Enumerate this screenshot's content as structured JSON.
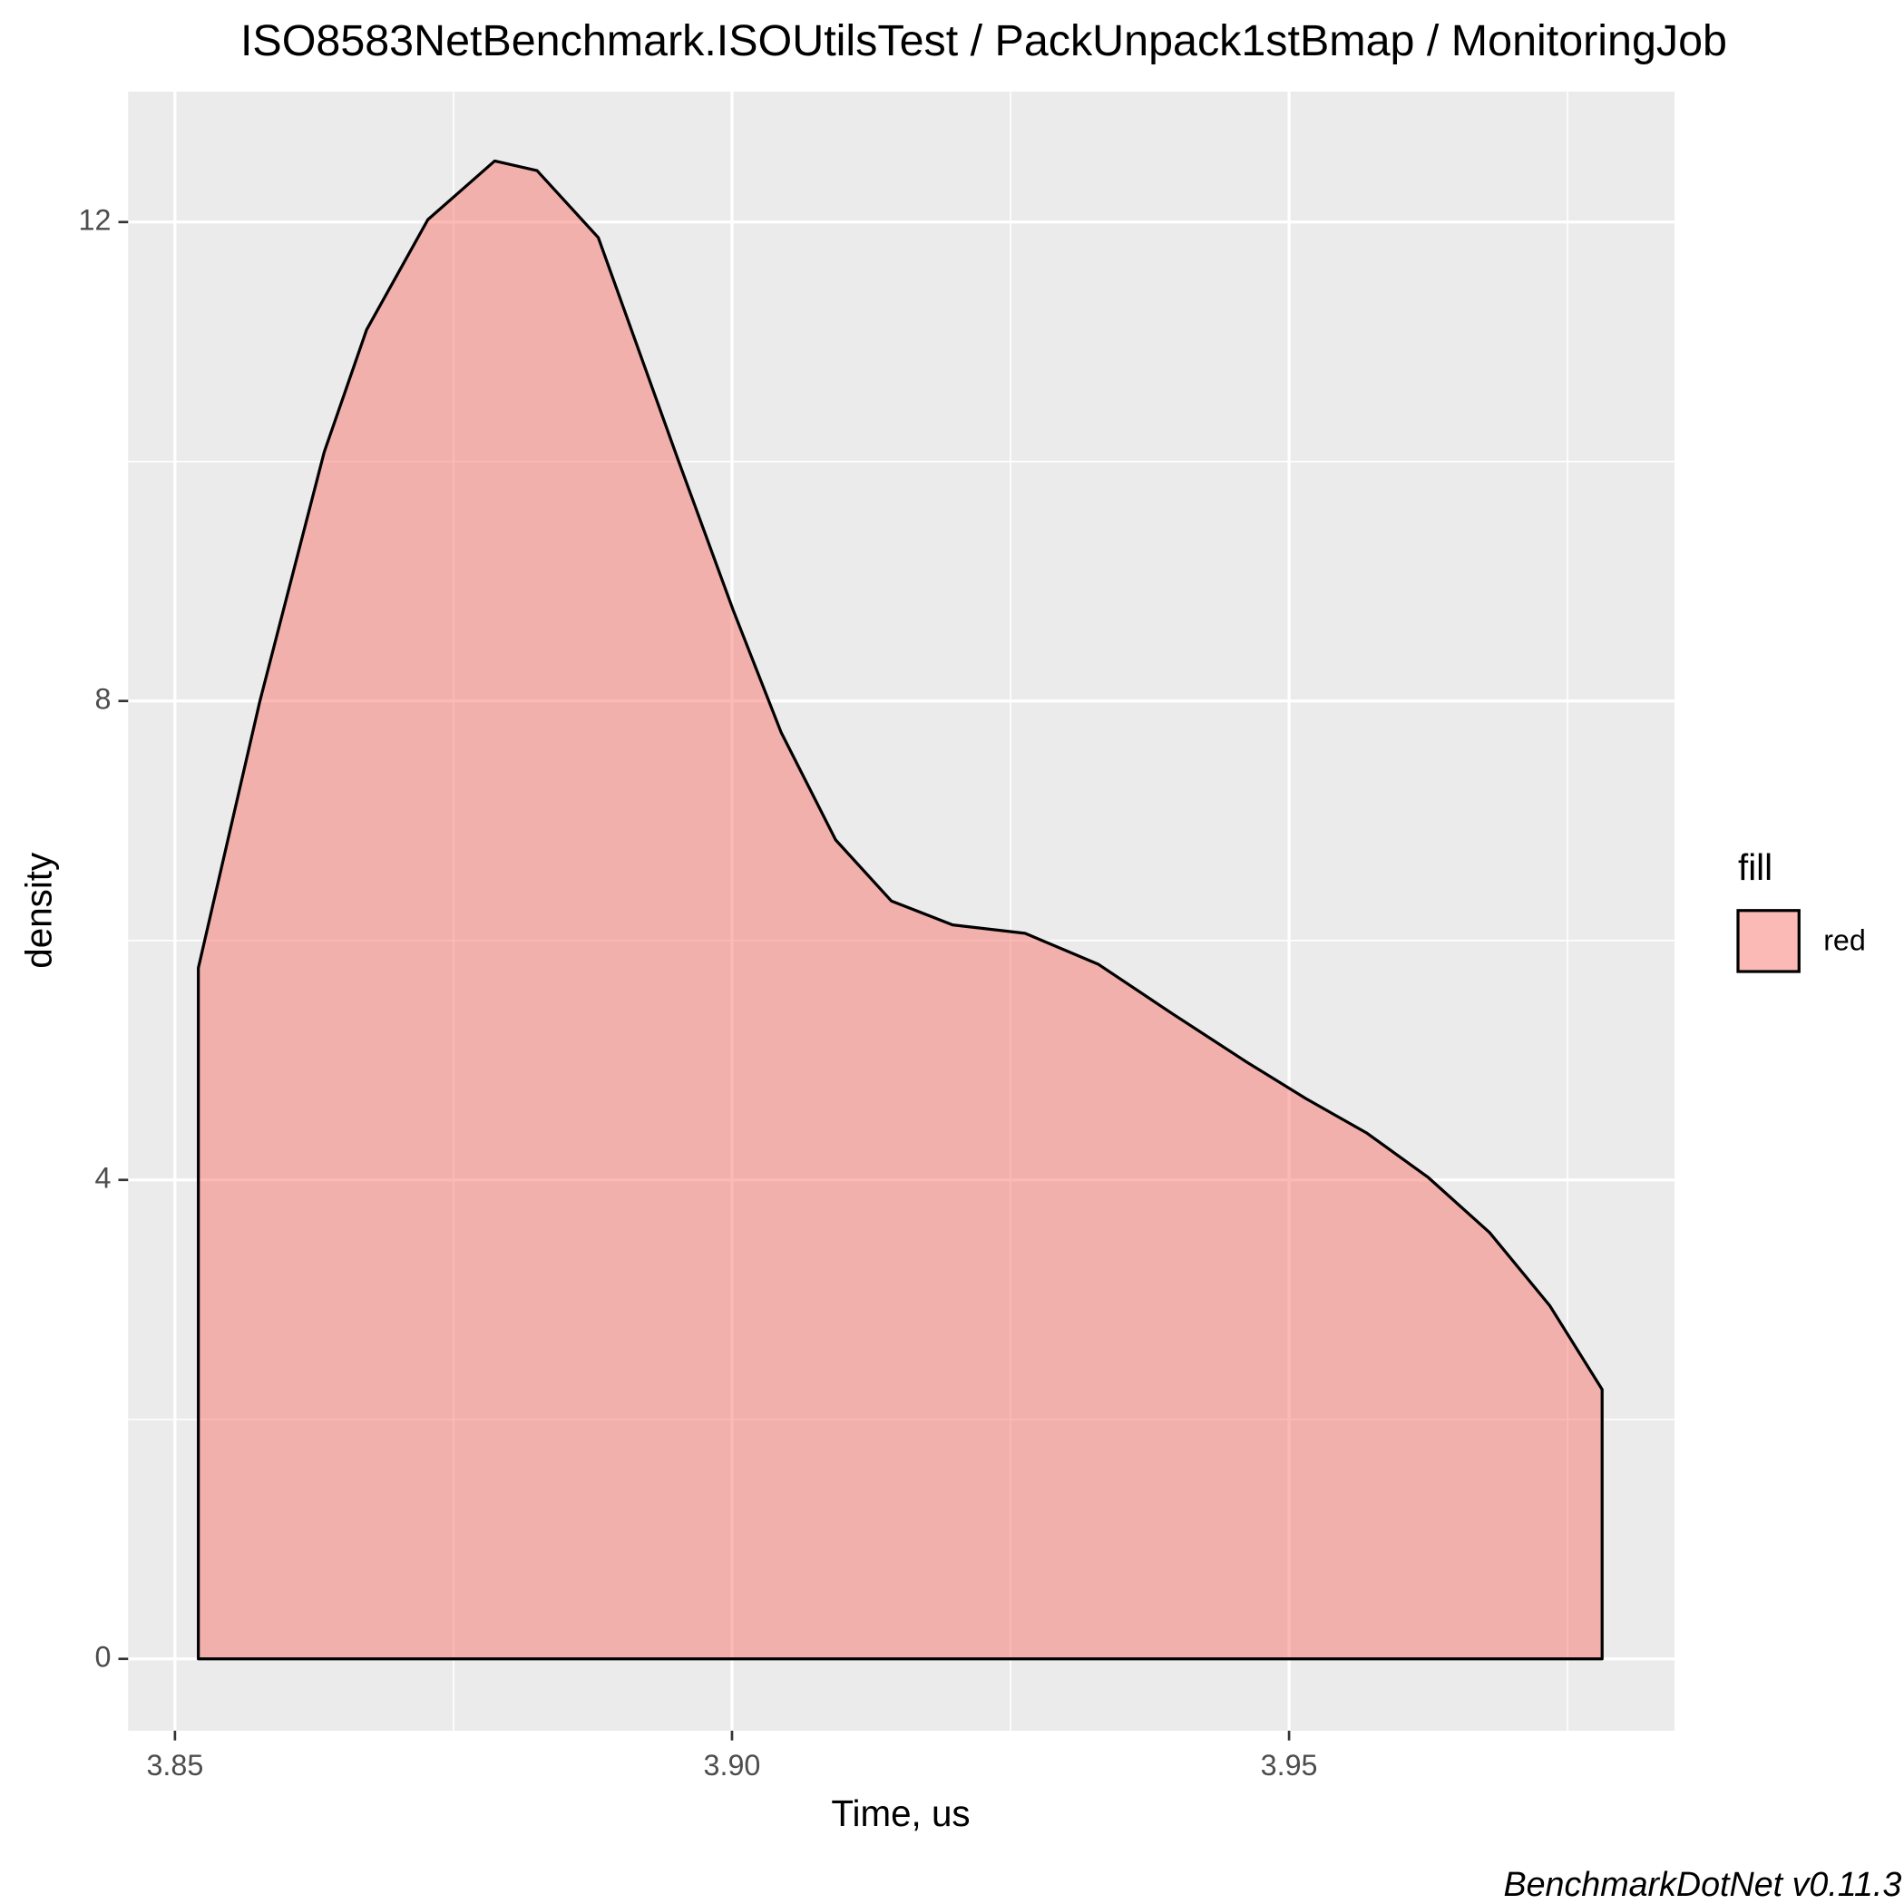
{
  "chart_data": {
    "type": "area",
    "title": "ISO8583NetBenchmark.ISOUtilsTest / PackUnpack1stBmap / MonitoringJob",
    "x_label": "Time, us",
    "y_label": "density",
    "caption": "BenchmarkDotNet v0.11.3",
    "legend_title": "fill",
    "legend_position": "right",
    "grid": true,
    "x": [
      3.8521,
      3.8576,
      3.8634,
      3.8672,
      3.8727,
      3.8787,
      3.8825,
      3.888,
      3.8951,
      3.9001,
      3.9044,
      3.9093,
      3.9143,
      3.9198,
      3.9263,
      3.9329,
      3.9395,
      3.9461,
      3.9515,
      3.957,
      3.9625,
      3.968,
      3.9734,
      3.9781
    ],
    "series": [
      {
        "name": "red",
        "color": "#F8766D",
        "values": [
          5.77,
          7.99,
          10.08,
          11.1,
          12.02,
          12.51,
          12.43,
          11.87,
          10.03,
          8.76,
          7.74,
          6.84,
          6.33,
          6.13,
          6.06,
          5.8,
          5.39,
          4.99,
          4.68,
          4.39,
          4.02,
          3.56,
          2.95,
          2.25
        ]
      }
    ],
    "xlim": [
      3.8458,
      3.9846
    ],
    "ylim": [
      -0.6,
      13.09
    ],
    "xticks": [
      3.85,
      {
        "value": 3.9,
        "label": "3.90"
      },
      3.95
    ],
    "yticks": [
      0,
      4,
      8,
      12
    ],
    "x_minor_ticks": [
      3.875,
      3.925,
      3.975
    ],
    "y_minor_ticks": [
      2,
      6,
      10
    ]
  }
}
